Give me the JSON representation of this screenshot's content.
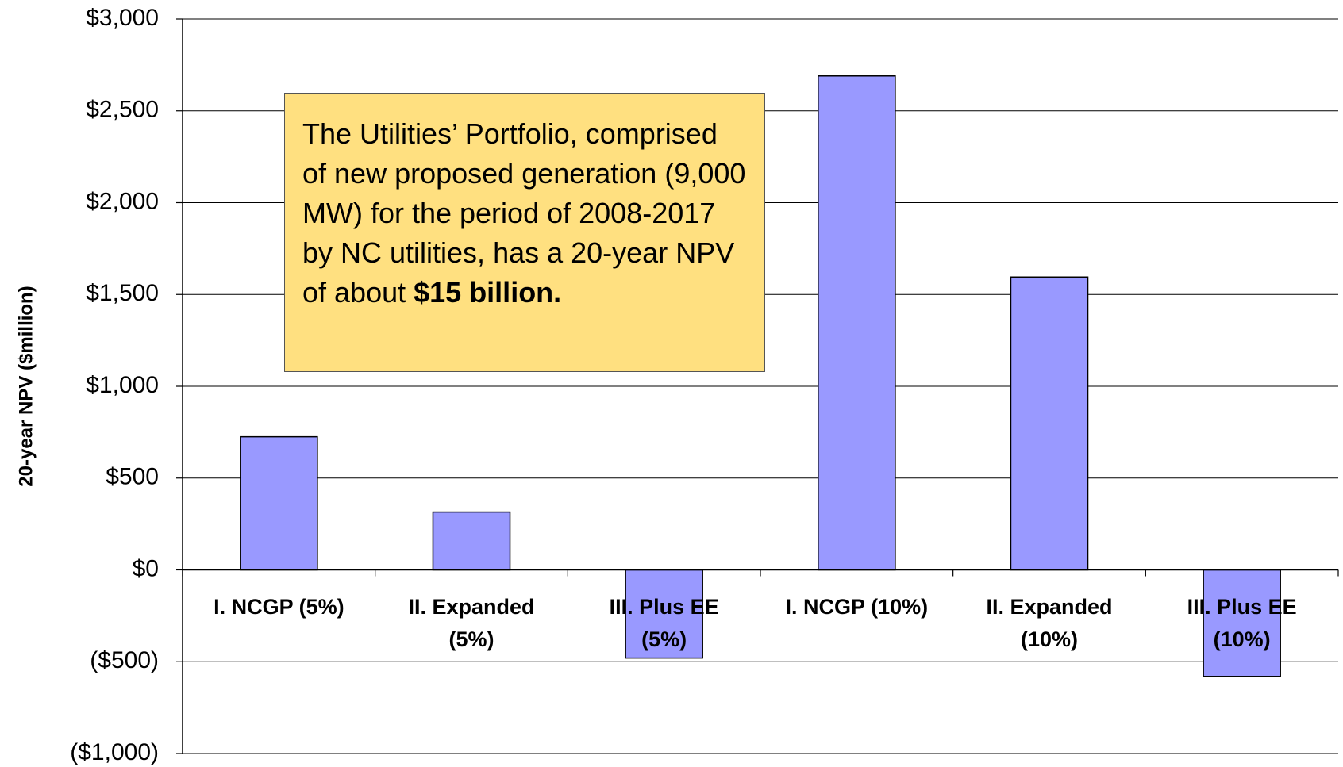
{
  "chart_data": {
    "type": "bar",
    "categories": [
      "I. NCGP (5%)",
      "II. Expanded (5%)",
      "III. Plus EE (5%)",
      "I. NCGP (10%)",
      "II. Expanded (10%)",
      "III. Plus EE (10%)"
    ],
    "values": [
      725,
      315,
      -480,
      2690,
      1595,
      -580
    ],
    "color": "#9999ff",
    "y_label": "20-year NPV ($million)",
    "ylim": [
      -1000,
      3000
    ],
    "yticks": [
      {
        "value": -1000,
        "label": "($1,000)"
      },
      {
        "value": -500,
        "label": "($500)"
      },
      {
        "value": 0,
        "label": "$0"
      },
      {
        "value": 500,
        "label": "$500"
      },
      {
        "value": 1000,
        "label": "$1,000"
      },
      {
        "value": 1500,
        "label": "$1,500"
      },
      {
        "value": 2000,
        "label": "$2,000"
      },
      {
        "value": 2500,
        "label": "$2,500"
      },
      {
        "value": 3000,
        "label": "$3,000"
      }
    ],
    "grid": true,
    "annotation": {
      "text": "The Utilities’ Portfolio, comprised of new proposed generation (9,000 MW) for the period of 2008-2017 by NC utilities, has a 20-year NPV of about ",
      "bold": "$15 billion."
    }
  }
}
